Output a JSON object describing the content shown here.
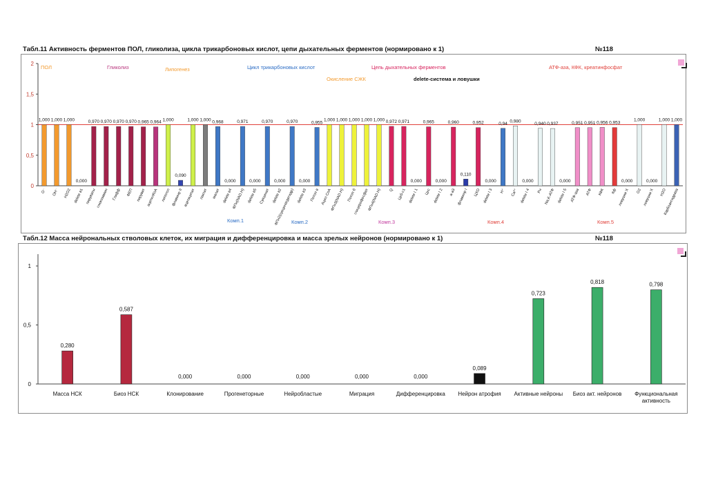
{
  "page": {
    "t11_title": "Табл.11  Активность ферментов ПОЛ, гликолиза, цикла трикарбоновых кислот, цепи дыхательных ферментов (нормировано к 1)",
    "t11_number": "№118",
    "t12_title": "Табл.12 Масса нейрональных стволовых клеток, их миграция и дифференцировка и масса зрелых нейронов (нормировано к 1)",
    "t12_number": "№118"
  },
  "chart_data": [
    {
      "type": "bar",
      "ylim": [
        0,
        2
      ],
      "yticks": [
        "0",
        "0,5",
        "1",
        "1,5",
        "2"
      ],
      "reference_line": 1,
      "reference_color": "#e0403a",
      "grid": false,
      "categories": [
        "O⁻",
        "OH⁻",
        "H2O2",
        "delete в1",
        "пируваты",
        "глюкозамин",
        "Глифф",
        "ФЕП",
        "пируват",
        "ацетилКоА",
        "липогол",
        "флавинр II",
        "ацетацетат",
        "лактат",
        "малат",
        "delete в4",
        "ФПн(NAD.H)",
        "delete в5",
        "Сукцинат",
        "delete в2",
        "ФПн2(сукцинатдегидр)",
        "delete в3",
        "Потоп в",
        "Ацил CoA",
        "ФПн3(NAD.H)",
        "Потоп б",
        "глицерофосфат",
        "ФПн4(NAD.H)",
        "Q",
        "Цхб-с1",
        "delete I 1",
        "Цхс",
        "delete I 2",
        "a-a3",
        "флавинр I",
        "ЦХО",
        "delete I 3",
        "H⁺",
        "Ca²⁺",
        "delete I 4",
        "Pн",
        "Na,K-АТФ",
        "delete I 5",
        "АТФ-аза",
        "АТФ",
        "КФК",
        "Кф",
        "ловушки Х",
        "O2",
        "ловушки Х",
        "H2O",
        "Карбоангидраза"
      ],
      "values": [
        1.0,
        1.0,
        1.0,
        0.0,
        0.97,
        0.97,
        0.97,
        0.97,
        0.965,
        0.964,
        1.0,
        0.09,
        1.0,
        1.0,
        0.968,
        0.0,
        0.971,
        0.0,
        0.97,
        0.0,
        0.97,
        0.0,
        0.955,
        1.0,
        1.0,
        1.0,
        1.0,
        1.0,
        0.972,
        0.971,
        0.0,
        0.965,
        0.0,
        0.96,
        0.11,
        0.952,
        0.0,
        0.94,
        0.98,
        0.0,
        0.94,
        0.937,
        0.0,
        0.951,
        0.951,
        0.956,
        0.953,
        0.0,
        1.0,
        0.0,
        1.0,
        1.0
      ],
      "value_labels": [
        "1,000",
        "1,000",
        "1,000",
        "0,000",
        "0,970",
        "0,970",
        "0,970",
        "0,970",
        "0,965",
        "0,964",
        "1,000",
        "0,090",
        "1,000",
        "1,000",
        "0,968",
        "0,000",
        "0,971",
        "0,000",
        "0,970",
        "0,000",
        "0,970",
        "0,000",
        "0,955",
        "1,000",
        "1,000",
        "1,000",
        "1,000",
        "1,000",
        "0,972",
        "0,971",
        "0,000",
        "0,965",
        "0,000",
        "0,960",
        "0,110",
        "0,952",
        "0,000",
        "0,94",
        "0,980",
        "0,000",
        "0,940",
        "0,937",
        "0,000",
        "0,951",
        "0,951",
        "0,956",
        "0,953",
        "0,000",
        "1,000",
        "0,000",
        "1,000",
        "1,000"
      ],
      "colors": [
        "#f39a2e",
        "#f39a2e",
        "#f39a2e",
        "#f39a2e",
        "#a3214a",
        "#a3214a",
        "#a3214a",
        "#a3214a",
        "#a3214a",
        "#b8347c",
        "#cff04a",
        "#3345b0",
        "#cff04a",
        "#7d7d7d",
        "#3f78c6",
        "#3f78c6",
        "#3f78c6",
        "#3f78c6",
        "#3f78c6",
        "#3f78c6",
        "#3f78c6",
        "#3f78c6",
        "#3f78c6",
        "#eef23a",
        "#eef23a",
        "#eef23a",
        "#eef23a",
        "#eef23a",
        "#d7245e",
        "#d7245e",
        "#d7245e",
        "#d7245e",
        "#d7245e",
        "#d7245e",
        "#2a3aa8",
        "#d7245e",
        "#d7245e",
        "#3f78c6",
        "#e8f3f3",
        "#e8f3f3",
        "#e8f3f3",
        "#e8f3f3",
        "#e8f3f3",
        "#f08fc8",
        "#f08fc8",
        "#f08fc8",
        "#e33a3a",
        "#e33a3a",
        "#e8f3f3",
        "#e8f3f3",
        "#e8f3f3",
        "#3b62b4"
      ],
      "group_labels": [
        {
          "text": "ПОЛ",
          "color": "#f39a2e"
        },
        {
          "text": "Гликолиз",
          "color": "#b8347c"
        },
        {
          "text": "Липогенез",
          "color": "#f39a2e"
        },
        {
          "text": "Цикл трикарбоновых кислот",
          "color": "#2b6cc4"
        },
        {
          "text": "Цепь дыхательных ферментов",
          "color": "#d7245e"
        },
        {
          "text": "АТФ-аза, КФК, креатинфосфат",
          "color": "#e0403a"
        },
        {
          "text": "Окисление СЖК",
          "color": "#f39a2e"
        },
        {
          "text": "delete-система и ловушки",
          "color": "#111111"
        }
      ],
      "complex_labels": [
        {
          "text": "Комп.1",
          "color": "#2b6cc4"
        },
        {
          "text": "Комп.2",
          "color": "#2b6cc4"
        },
        {
          "text": "Комп.3",
          "color": "#c23a9e"
        },
        {
          "text": "Комп.4",
          "color": "#e0403a"
        },
        {
          "text": "Комп.5",
          "color": "#e0403a"
        }
      ]
    },
    {
      "type": "bar",
      "ylim": [
        0,
        1.1
      ],
      "yticks": [
        "0",
        "0,5",
        "1"
      ],
      "grid": false,
      "categories": [
        "Масса НСК",
        "Биоз НСК",
        "Клонирование",
        "Прогенеторные",
        "Нейробластые",
        "Миграция",
        "Дифференцировка",
        "Нейрон атрофия",
        "Активные нейроны",
        "Биоз акт. нейронов",
        "Функциональная активность"
      ],
      "values": [
        0.28,
        0.587,
        0.0,
        0.0,
        0.0,
        0.0,
        0.0,
        0.089,
        0.723,
        0.818,
        0.798
      ],
      "value_labels": [
        "0,280",
        "0,587",
        "0,000",
        "0,000",
        "0,000",
        "0,000",
        "0,000",
        "0,089",
        "0,723",
        "0,818",
        "0,798"
      ],
      "colors": [
        "#b5283e",
        "#b5283e",
        "#b5283e",
        "#b5283e",
        "#b5283e",
        "#b5283e",
        "#b5283e",
        "#111111",
        "#3cae6a",
        "#3cae6a",
        "#3cae6a"
      ]
    }
  ]
}
